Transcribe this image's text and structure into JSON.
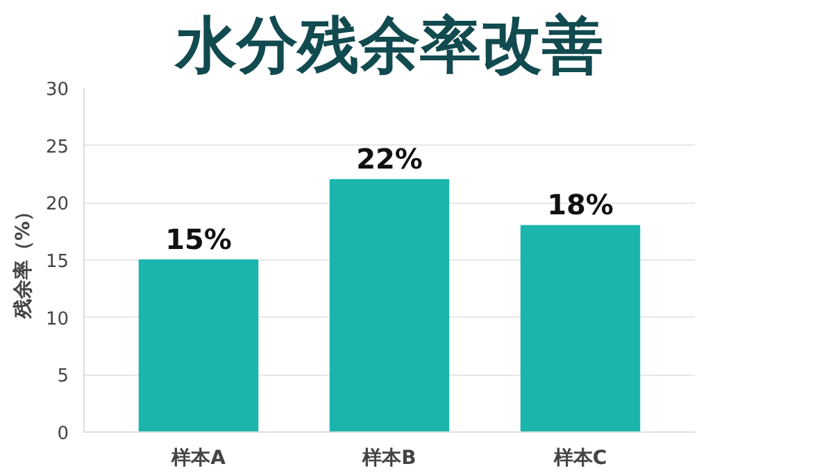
{
  "chart_data": {
    "type": "bar",
    "title": "水分残余率改善",
    "ylabel": "残余率（%）",
    "categories": [
      "样本A",
      "样本B",
      "样本C"
    ],
    "values": [
      15,
      22,
      18
    ],
    "value_labels": [
      "15%",
      "22%",
      "18%"
    ],
    "color": "#1bb5ad",
    "ylim": [
      0,
      30
    ],
    "yticks": [
      0,
      5,
      10,
      15,
      20,
      25,
      30
    ],
    "grid": "y"
  }
}
